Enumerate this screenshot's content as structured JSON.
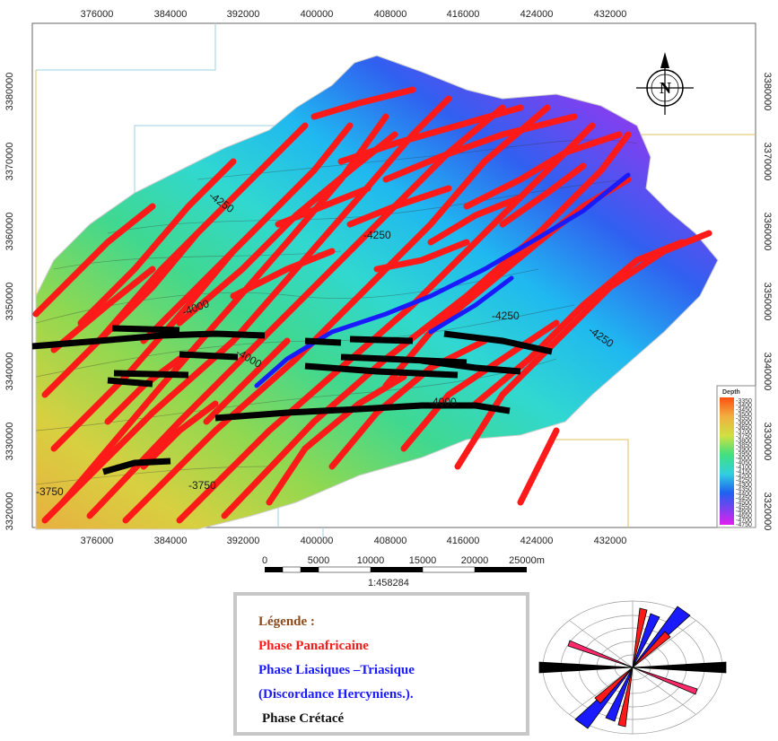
{
  "map": {
    "x_ticks": [
      "376000",
      "384000",
      "392000",
      "400000",
      "408000",
      "416000",
      "424000",
      "432000"
    ],
    "y_ticks_left": [
      "3380000",
      "3370000",
      "3360000",
      "3350000",
      "3340000",
      "3330000",
      "3320000"
    ],
    "y_ticks_right": [
      "3380000",
      "3370000",
      "3360000",
      "3350000",
      "3340000",
      "3330000",
      "3320000"
    ],
    "contour_labels": [
      "-4250",
      "-4000",
      "-3750",
      "-4250",
      "-4250",
      "-4250",
      "-4000",
      "-4000",
      "-3750"
    ],
    "north_arrow": "N",
    "north_icon": "compass-north-arrow-icon"
  },
  "depth_legend": {
    "title": "Depth",
    "values": [
      "-3350",
      "-3400",
      "-3450",
      "-3500",
      "-3550",
      "-3600",
      "-3650",
      "-3700",
      "-3750",
      "-3800",
      "-3850",
      "-3900",
      "-3950",
      "-4000",
      "-4050",
      "-4100",
      "-4150",
      "-4200",
      "-4250",
      "-4300",
      "-4350",
      "-4400",
      "-4450",
      "-4500",
      "-4550",
      "-4600",
      "-4650",
      "-4700",
      "-4750"
    ]
  },
  "scale_bar": {
    "labels": [
      "0",
      "5000",
      "10000",
      "15000",
      "20000",
      "25000m"
    ],
    "ratio": "1:458284"
  },
  "legend": {
    "title": "Légende :",
    "red": "Phase Panafricaine",
    "blue": "Phase Liasiques –Triasique",
    "blue2": "(Discordance Hercyniens.).",
    "black": "Phase Crétacé"
  },
  "colors": {
    "panafricaine": "#ff1a1a",
    "liasique": "#1a1aff",
    "cretace": "#000000"
  }
}
